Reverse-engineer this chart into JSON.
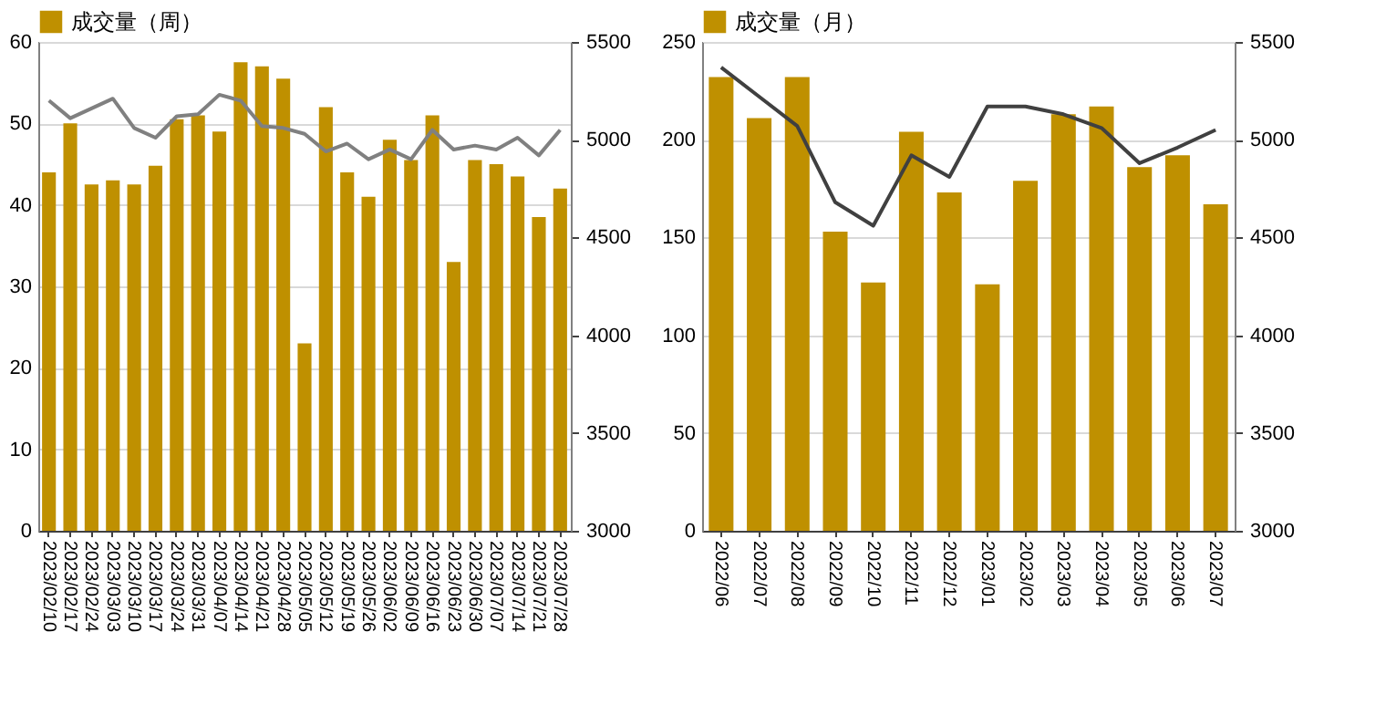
{
  "chart_data": [
    {
      "type": "bar",
      "categories": [
        "2023/02/10",
        "2023/02/17",
        "2023/02/24",
        "2023/03/03",
        "2023/03/10",
        "2023/03/17",
        "2023/03/24",
        "2023/03/31",
        "2023/04/07",
        "2023/04/14",
        "2023/04/21",
        "2023/04/28",
        "2023/05/05",
        "2023/05/12",
        "2023/05/19",
        "2023/05/26",
        "2023/06/02",
        "2023/06/09",
        "2023/06/16",
        "2023/06/23",
        "2023/06/30",
        "2023/07/07",
        "2023/07/14",
        "2023/07/21",
        "2023/07/28"
      ],
      "series": [
        {
          "name": "成交量（周）",
          "color": "#bf9000",
          "values": [
            44,
            50,
            42.5,
            43,
            42.5,
            44.8,
            50.5,
            51,
            49,
            57.5,
            57,
            55.5,
            23,
            52,
            44,
            41,
            48,
            45.5,
            51,
            33,
            45.5,
            45,
            43.5,
            38.5,
            42
          ]
        },
        {
          "type": "line",
          "axis": "y2",
          "color": "#808080",
          "values": [
            5200,
            5110,
            5160,
            5210,
            5060,
            5010,
            5120,
            5130,
            5230,
            5200,
            5070,
            5060,
            5030,
            4940,
            4980,
            4900,
            4950,
            4900,
            5050,
            4950,
            4970,
            4950,
            5010,
            4920,
            5050
          ]
        }
      ],
      "ylim": [
        0,
        60
      ],
      "yticks": [
        0,
        10,
        20,
        30,
        40,
        50,
        60
      ],
      "y2lim": [
        3000,
        5500
      ],
      "y2ticks": [
        3000,
        3500,
        4000,
        4500,
        5000,
        5500
      ],
      "grid": "y",
      "legend": "top"
    },
    {
      "type": "bar",
      "categories": [
        "2022/06",
        "2022/07",
        "2022/08",
        "2022/09",
        "2022/10",
        "2022/11",
        "2022/12",
        "2023/01",
        "2023/02",
        "2023/03",
        "2023/04",
        "2023/05",
        "2023/06",
        "2023/07"
      ],
      "series": [
        {
          "name": "成交量（月）",
          "color": "#bf9000",
          "values": [
            232,
            211,
            232,
            153,
            127,
            204,
            173,
            126,
            179,
            213,
            217,
            186,
            192,
            167
          ]
        },
        {
          "type": "line",
          "axis": "y2",
          "color": "#404040",
          "values": [
            5370,
            5220,
            5070,
            4680,
            4560,
            4920,
            4810,
            5170,
            5170,
            5130,
            5060,
            4880,
            4960,
            5050
          ]
        }
      ],
      "ylim": [
        0,
        250
      ],
      "yticks": [
        0,
        50,
        100,
        150,
        200,
        250
      ],
      "y2lim": [
        3000,
        5500
      ],
      "y2ticks": [
        3000,
        3500,
        4000,
        4500,
        5000,
        5500
      ],
      "grid": "y",
      "legend": "top"
    }
  ]
}
